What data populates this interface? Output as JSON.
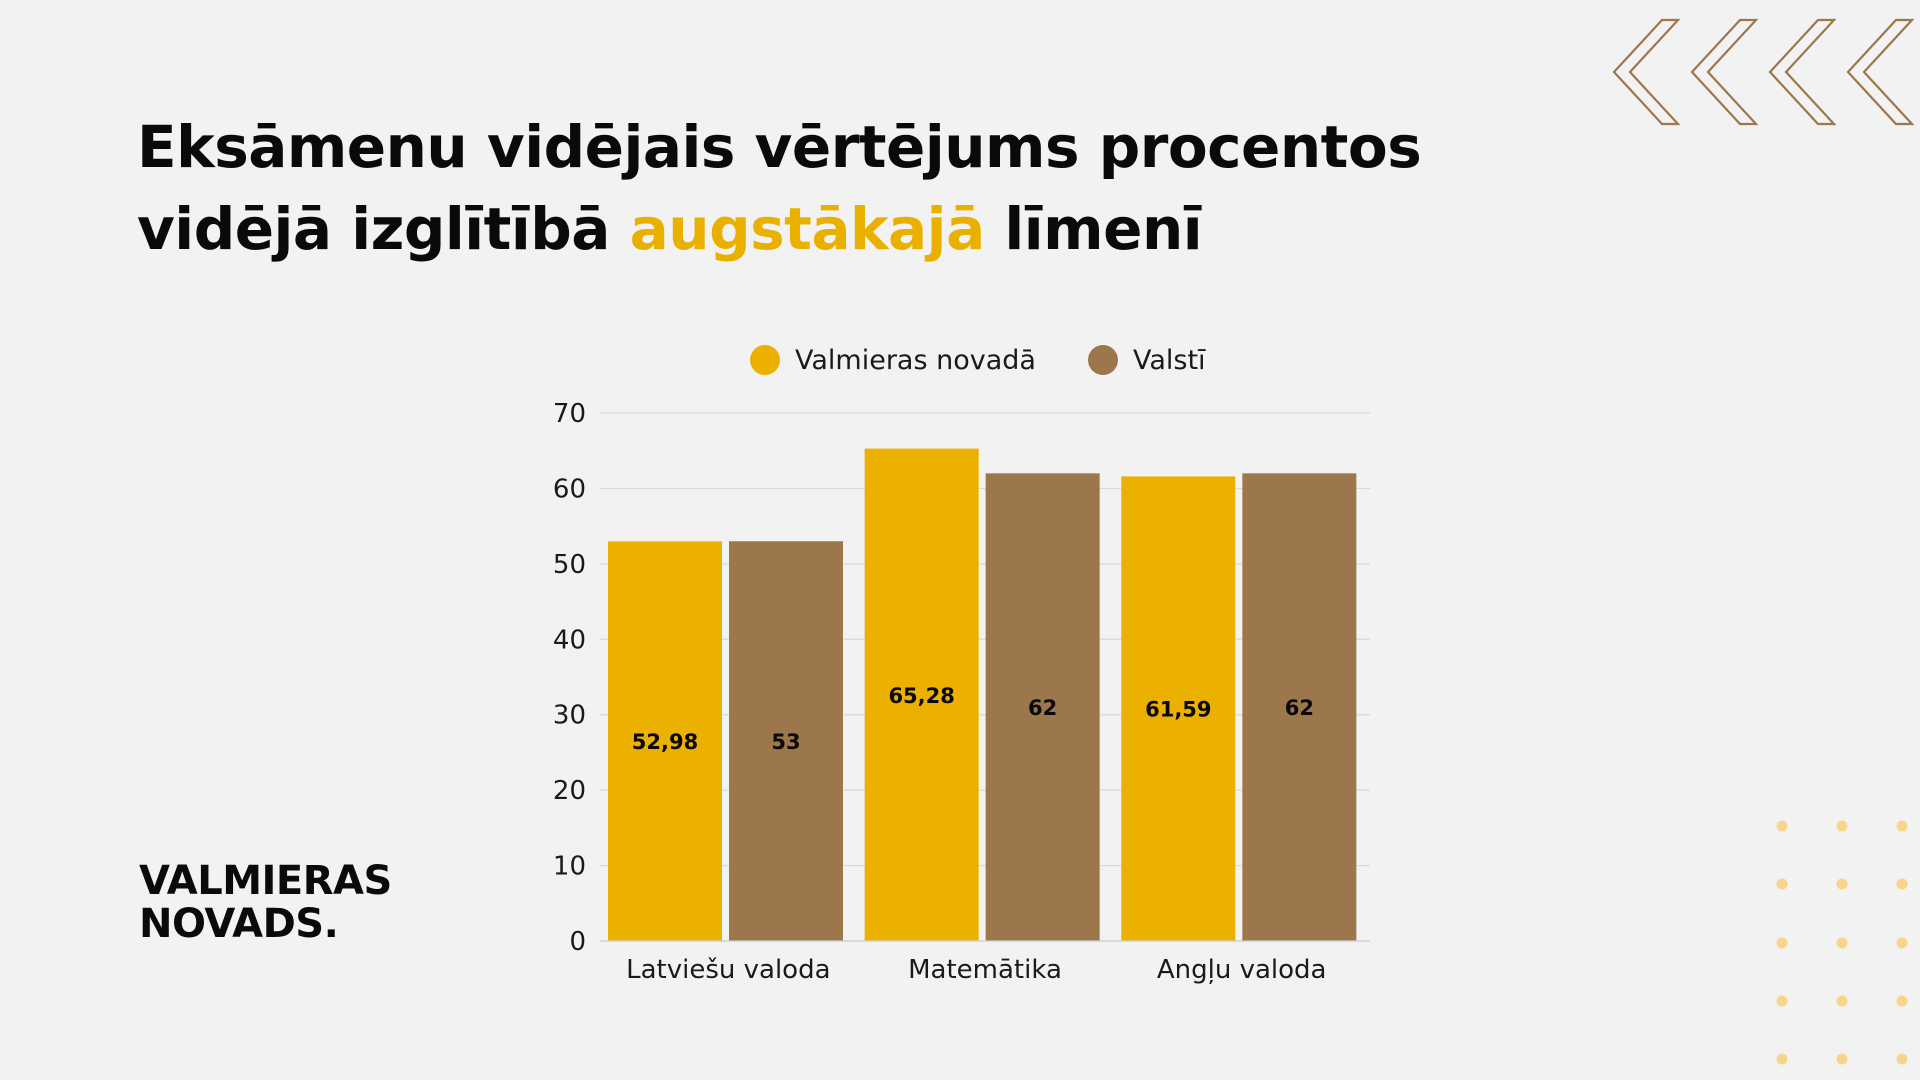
{
  "title": {
    "part1": "Eksāmenu vidējais vērtējums procentos",
    "part2": "vidējā izglītībā ",
    "highlight": "augstākajā",
    "part3": " līmenī"
  },
  "logo": {
    "line1": "VALMIERAS",
    "line2": "NOVADS."
  },
  "colors": {
    "primary": "#ebb000",
    "secondary": "#9d774c",
    "accent_title": "#eab000",
    "chevron": "#9d774c",
    "dots": "#f7d58a"
  },
  "decor": {
    "top_right": "chevron-left-icons",
    "bottom_right": "dot-grid"
  },
  "chart_data": {
    "type": "bar",
    "categories": [
      "Latviešu valoda",
      "Matemātika",
      "Angļu valoda"
    ],
    "series": [
      {
        "name": "Valmieras novadā",
        "color": "#ebb000",
        "values": [
          52.98,
          65.28,
          61.59
        ],
        "labels": [
          "52,98",
          "65,28",
          "61,59"
        ]
      },
      {
        "name": "Valstī",
        "color": "#9d774c",
        "values": [
          53,
          62,
          62
        ],
        "labels": [
          "53",
          "62",
          "62"
        ]
      }
    ],
    "ylim": [
      0,
      70
    ],
    "yticks": [
      "0",
      "10",
      "20",
      "30",
      "40",
      "50",
      "60",
      "70"
    ],
    "grid": true,
    "legend_position": "top"
  }
}
